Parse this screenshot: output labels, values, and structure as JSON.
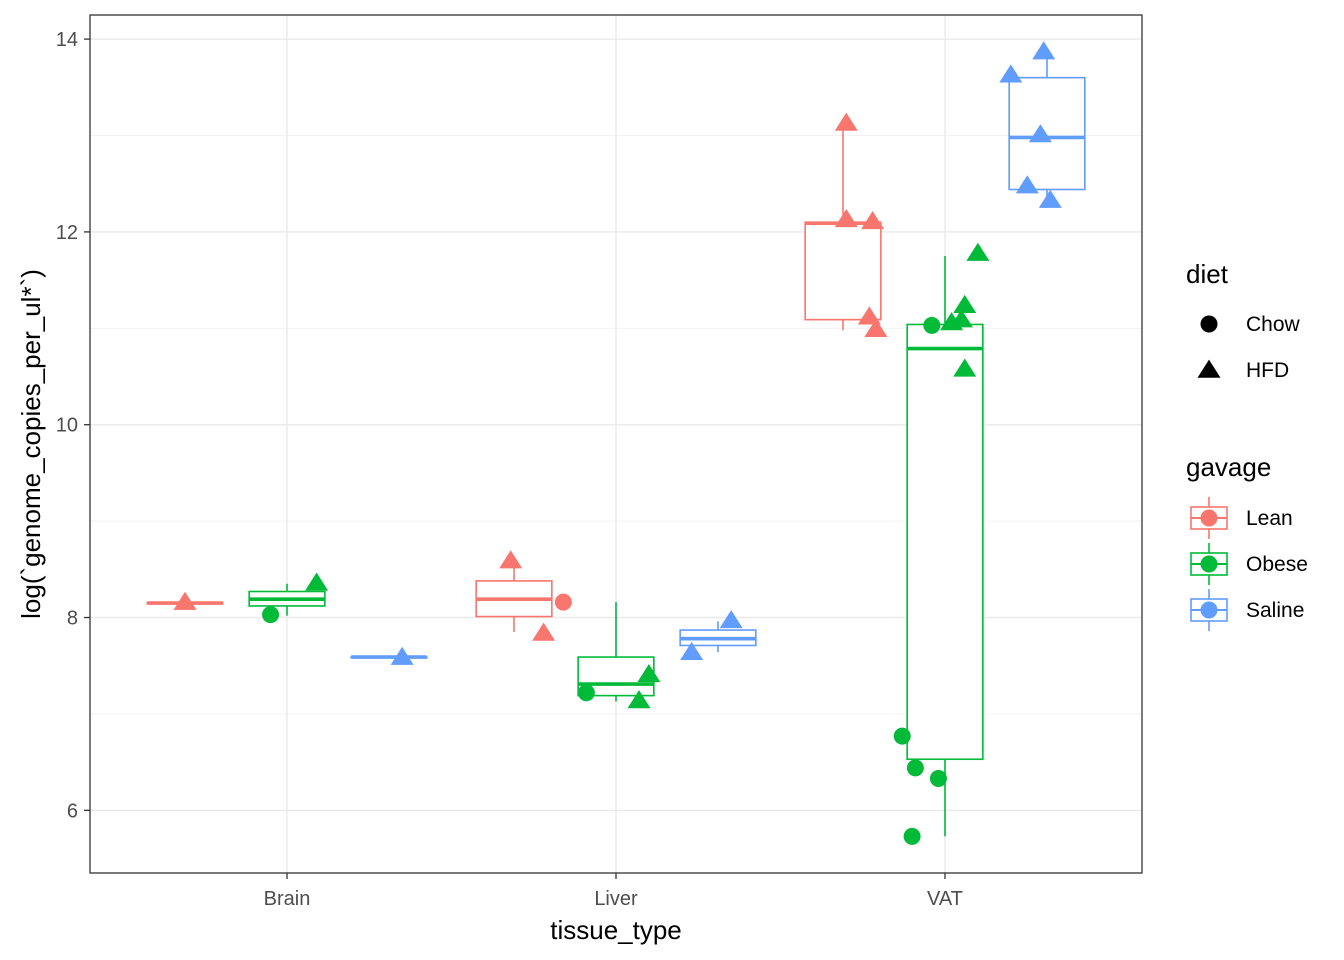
{
  "chart_data": {
    "type": "boxplot",
    "xlabel": "tissue_type",
    "ylabel": "log(`genome_copies_per_ul*`)",
    "categories": [
      "Brain",
      "Liver",
      "VAT"
    ],
    "ylim": [
      5.35,
      14.25
    ],
    "yticks": [
      6,
      8,
      10,
      12,
      14
    ],
    "grid": true,
    "colors": {
      "Lean": "#F8766D",
      "Obese": "#00BA38",
      "Saline": "#619CFF"
    },
    "legend": {
      "position": "right",
      "diet": {
        "title": "diet",
        "items": [
          {
            "label": "Chow",
            "shape": "circle"
          },
          {
            "label": "HFD",
            "shape": "triangle"
          }
        ]
      },
      "gavage": {
        "title": "gavage",
        "items": [
          {
            "label": "Lean"
          },
          {
            "label": "Obese"
          },
          {
            "label": "Saline"
          }
        ]
      }
    },
    "boxes": [
      {
        "tissue": "Brain",
        "gavage": "Lean",
        "min": 8.15,
        "q1": 8.15,
        "median": 8.15,
        "q3": 8.15,
        "max": 8.15
      },
      {
        "tissue": "Brain",
        "gavage": "Obese",
        "min": 8.02,
        "q1": 8.12,
        "median": 8.19,
        "q3": 8.27,
        "max": 8.35
      },
      {
        "tissue": "Brain",
        "gavage": "Saline",
        "min": 7.59,
        "q1": 7.59,
        "median": 7.59,
        "q3": 7.59,
        "max": 7.59
      },
      {
        "tissue": "Liver",
        "gavage": "Lean",
        "min": 7.85,
        "q1": 8.01,
        "median": 8.19,
        "q3": 8.38,
        "max": 8.57
      },
      {
        "tissue": "Liver",
        "gavage": "Obese",
        "min": 7.13,
        "q1": 7.19,
        "median": 7.31,
        "q3": 7.59,
        "max": 8.16
      },
      {
        "tissue": "Liver",
        "gavage": "Saline",
        "min": 7.64,
        "q1": 7.71,
        "median": 7.78,
        "q3": 7.87,
        "max": 7.96
      },
      {
        "tissue": "VAT",
        "gavage": "Lean",
        "min": 10.98,
        "q1": 11.09,
        "median": 12.09,
        "q3": 12.1,
        "max": 13.12
      },
      {
        "tissue": "VAT",
        "gavage": "Obese",
        "min": 5.73,
        "q1": 6.53,
        "median": 10.79,
        "q3": 11.04,
        "max": 11.75
      },
      {
        "tissue": "VAT",
        "gavage": "Saline",
        "min": 12.3,
        "q1": 12.44,
        "median": 12.98,
        "q3": 13.6,
        "max": 13.85
      }
    ],
    "points": [
      {
        "tissue": "Brain",
        "gavage": "Lean",
        "diet": "HFD",
        "offset": -0.31,
        "y": 8.16
      },
      {
        "tissue": "Brain",
        "gavage": "Obese",
        "diet": "Chow",
        "offset": -0.05,
        "y": 8.03
      },
      {
        "tissue": "Brain",
        "gavage": "Obese",
        "diet": "HFD",
        "offset": 0.09,
        "y": 8.36
      },
      {
        "tissue": "Brain",
        "gavage": "Saline",
        "diet": "HFD",
        "offset": 0.35,
        "y": 7.59
      },
      {
        "tissue": "Liver",
        "gavage": "Lean",
        "diet": "HFD",
        "offset": -0.32,
        "y": 8.59
      },
      {
        "tissue": "Liver",
        "gavage": "Lean",
        "diet": "HFD",
        "offset": -0.22,
        "y": 7.84
      },
      {
        "tissue": "Liver",
        "gavage": "Lean",
        "diet": "Chow",
        "offset": -0.16,
        "y": 8.16
      },
      {
        "tissue": "Liver",
        "gavage": "Obese",
        "diet": "Chow",
        "offset": -0.09,
        "y": 7.22
      },
      {
        "tissue": "Liver",
        "gavage": "Obese",
        "diet": "HFD",
        "offset": 0.07,
        "y": 7.14
      },
      {
        "tissue": "Liver",
        "gavage": "Obese",
        "diet": "HFD",
        "offset": 0.1,
        "y": 7.41
      },
      {
        "tissue": "Liver",
        "gavage": "Saline",
        "diet": "HFD",
        "offset": 0.23,
        "y": 7.64
      },
      {
        "tissue": "Liver",
        "gavage": "Saline",
        "diet": "HFD",
        "offset": 0.35,
        "y": 7.97
      },
      {
        "tissue": "VAT",
        "gavage": "Lean",
        "diet": "HFD",
        "offset": -0.3,
        "y": 13.13
      },
      {
        "tissue": "VAT",
        "gavage": "Lean",
        "diet": "HFD",
        "offset": -0.3,
        "y": 12.13
      },
      {
        "tissue": "VAT",
        "gavage": "Lean",
        "diet": "HFD",
        "offset": -0.22,
        "y": 12.11
      },
      {
        "tissue": "VAT",
        "gavage": "Lean",
        "diet": "HFD",
        "offset": -0.23,
        "y": 11.12
      },
      {
        "tissue": "VAT",
        "gavage": "Lean",
        "diet": "HFD",
        "offset": -0.21,
        "y": 10.99
      },
      {
        "tissue": "VAT",
        "gavage": "Obese",
        "diet": "Chow",
        "offset": -0.13,
        "y": 6.77
      },
      {
        "tissue": "VAT",
        "gavage": "Obese",
        "diet": "Chow",
        "offset": -0.09,
        "y": 6.44
      },
      {
        "tissue": "VAT",
        "gavage": "Obese",
        "diet": "Chow",
        "offset": -0.1,
        "y": 5.73
      },
      {
        "tissue": "VAT",
        "gavage": "Obese",
        "diet": "Chow",
        "offset": -0.02,
        "y": 6.33
      },
      {
        "tissue": "VAT",
        "gavage": "Obese",
        "diet": "Chow",
        "offset": -0.04,
        "y": 11.03
      },
      {
        "tissue": "VAT",
        "gavage": "Obese",
        "diet": "HFD",
        "offset": 0.02,
        "y": 11.06
      },
      {
        "tissue": "VAT",
        "gavage": "Obese",
        "diet": "HFD",
        "offset": 0.05,
        "y": 11.09
      },
      {
        "tissue": "VAT",
        "gavage": "Obese",
        "diet": "HFD",
        "offset": 0.06,
        "y": 11.24
      },
      {
        "tissue": "VAT",
        "gavage": "Obese",
        "diet": "HFD",
        "offset": 0.06,
        "y": 10.58
      },
      {
        "tissue": "VAT",
        "gavage": "Obese",
        "diet": "HFD",
        "offset": 0.1,
        "y": 11.78
      },
      {
        "tissue": "VAT",
        "gavage": "Saline",
        "diet": "HFD",
        "offset": 0.2,
        "y": 13.63
      },
      {
        "tissue": "VAT",
        "gavage": "Saline",
        "diet": "HFD",
        "offset": 0.3,
        "y": 13.87
      },
      {
        "tissue": "VAT",
        "gavage": "Saline",
        "diet": "HFD",
        "offset": 0.29,
        "y": 13.01
      },
      {
        "tissue": "VAT",
        "gavage": "Saline",
        "diet": "HFD",
        "offset": 0.25,
        "y": 12.48
      },
      {
        "tissue": "VAT",
        "gavage": "Saline",
        "diet": "HFD",
        "offset": 0.32,
        "y": 12.33
      }
    ]
  }
}
